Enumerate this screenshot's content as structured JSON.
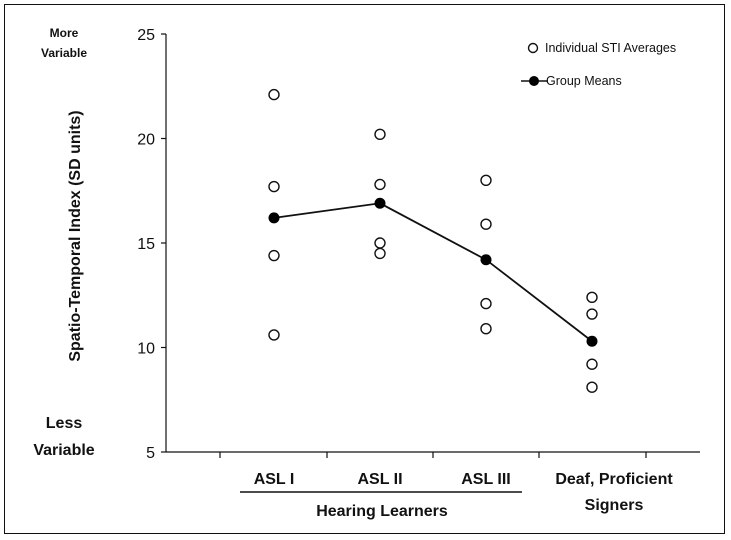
{
  "chart_data": {
    "type": "scatter",
    "ylabel": "Spatio-Temporal Index (SD units)",
    "ylim": [
      5,
      25
    ],
    "yticks": [
      5,
      10,
      15,
      20,
      25
    ],
    "y_top_note": [
      "More",
      "Variable"
    ],
    "y_bottom_note": [
      "Less",
      "Variable"
    ],
    "categories": [
      "ASL I",
      "ASL II",
      "ASL III",
      "Deaf, Proficient Signers"
    ],
    "category_lines": [
      [
        "ASL I"
      ],
      [
        "ASL II"
      ],
      [
        "ASL III"
      ],
      [
        "Deaf, Proficient",
        "Signers"
      ]
    ],
    "group_label": "Hearing Learners",
    "grid": false,
    "legend_position": "top-right",
    "series": [
      {
        "name": "Individual STI Averages",
        "kind": "open-circles",
        "color": "#ffffff",
        "points": [
          [
            22.1,
            17.7,
            14.4,
            10.6
          ],
          [
            20.2,
            17.8,
            15.0,
            14.5
          ],
          [
            18.0,
            15.9,
            12.1,
            10.9
          ],
          [
            12.4,
            11.6,
            9.2,
            8.1
          ]
        ]
      },
      {
        "name": "Group Means",
        "kind": "line-with-filled-markers",
        "color": "#000000",
        "values": [
          16.2,
          16.9,
          14.2,
          10.3
        ]
      }
    ]
  }
}
